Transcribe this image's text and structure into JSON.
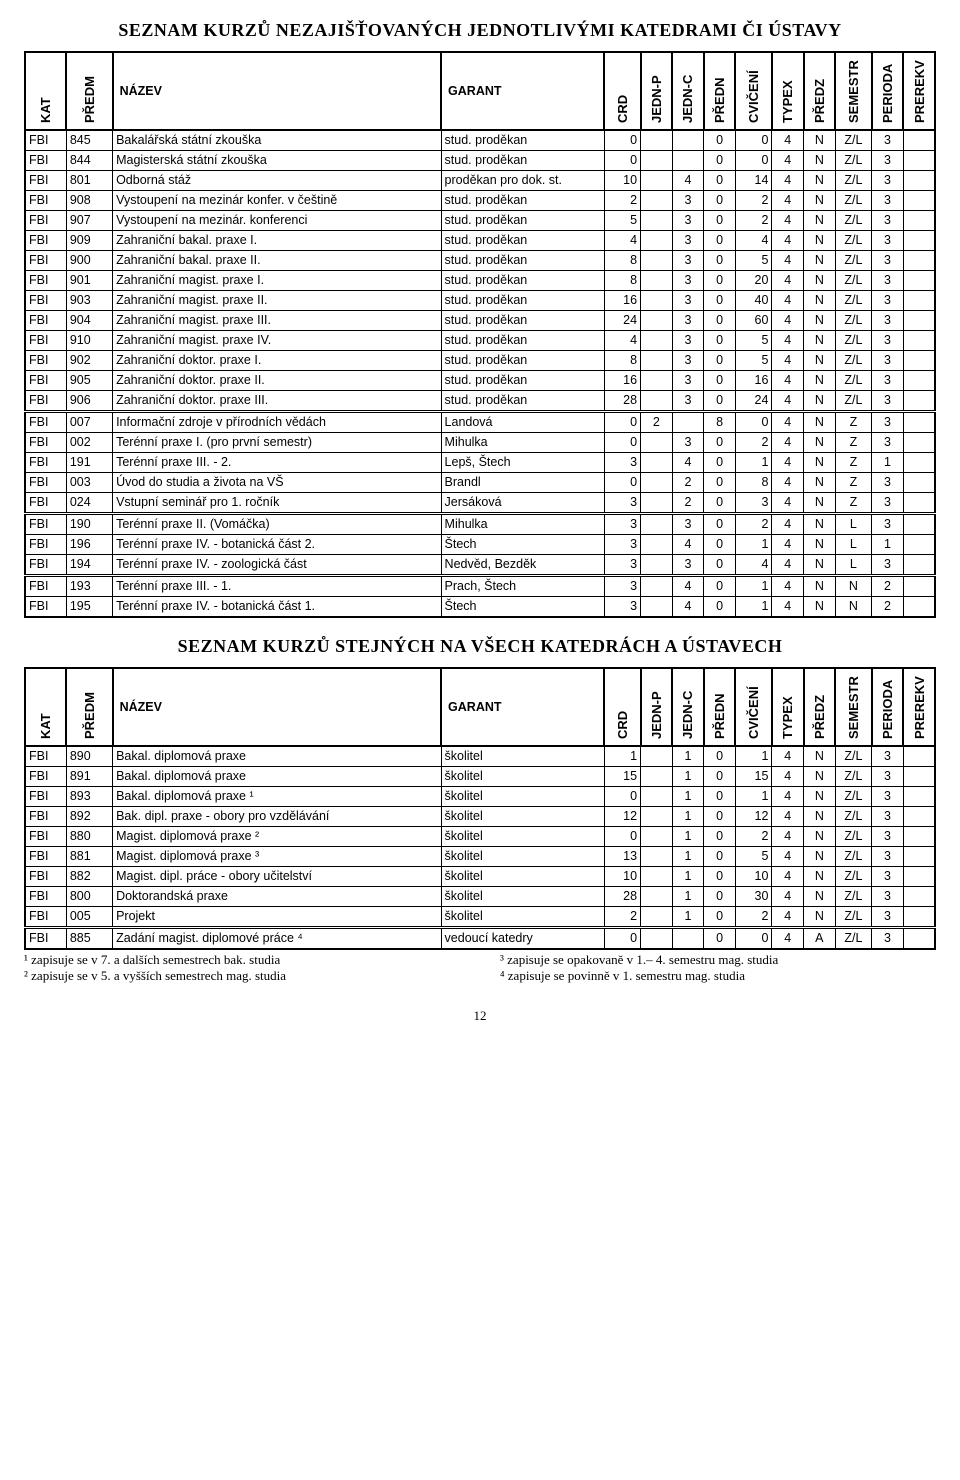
{
  "title1": "SEZNAM KURZŮ NEZAJIŠŤOVANÝCH JEDNOTLIVÝMI KATEDRAMI ČI ÚSTAVY",
  "title2": "SEZNAM KURZŮ STEJNÝCH NA VŠECH KATEDRÁCH A ÚSTAVECH",
  "headers": {
    "kat": "KAT",
    "predm": "PŘEDM",
    "nazev": "NÁZEV",
    "garant": "GARANT",
    "crd": "CRD",
    "jednp": "JEDN-P",
    "jednc": "JEDN-C",
    "predn": "PŘEDN",
    "cvic": "CVIČENÍ",
    "typex": "TYPEX",
    "predz": "PŘEDZ",
    "semestr": "SEMESTR",
    "perioda": "PERIODA",
    "prerekv": "PREREKV"
  },
  "table1": [
    {
      "kat": "FBI",
      "predm": "845",
      "nazev": "Bakalářská státní zkouška",
      "garant": "stud. proděkan",
      "crd": "0",
      "jednp": "",
      "jednc": "",
      "predn": "0",
      "cvic": "0",
      "typex": "4",
      "predz": "N",
      "sem": "Z/L",
      "per": "3",
      "pre": "",
      "sep": false
    },
    {
      "kat": "FBI",
      "predm": "844",
      "nazev": "Magisterská státní zkouška",
      "garant": "stud. proděkan",
      "crd": "0",
      "jednp": "",
      "jednc": "",
      "predn": "0",
      "cvic": "0",
      "typex": "4",
      "predz": "N",
      "sem": "Z/L",
      "per": "3",
      "pre": "",
      "sep": false
    },
    {
      "kat": "FBI",
      "predm": "801",
      "nazev": "Odborná stáž",
      "garant": "proděkan pro dok. st.",
      "crd": "10",
      "jednp": "",
      "jednc": "4",
      "predn": "0",
      "cvic": "14",
      "typex": "4",
      "predz": "N",
      "sem": "Z/L",
      "per": "3",
      "pre": "",
      "sep": false
    },
    {
      "kat": "FBI",
      "predm": "908",
      "nazev": "Vystoupení na mezinár konfer. v češtině",
      "garant": "stud. proděkan",
      "crd": "2",
      "jednp": "",
      "jednc": "3",
      "predn": "0",
      "cvic": "2",
      "typex": "4",
      "predz": "N",
      "sem": "Z/L",
      "per": "3",
      "pre": "",
      "sep": false
    },
    {
      "kat": "FBI",
      "predm": "907",
      "nazev": "Vystoupení na mezinár. konferenci",
      "garant": "stud. proděkan",
      "crd": "5",
      "jednp": "",
      "jednc": "3",
      "predn": "0",
      "cvic": "2",
      "typex": "4",
      "predz": "N",
      "sem": "Z/L",
      "per": "3",
      "pre": "",
      "sep": false
    },
    {
      "kat": "FBI",
      "predm": "909",
      "nazev": "Zahraniční bakal. praxe I.",
      "garant": "stud. proděkan",
      "crd": "4",
      "jednp": "",
      "jednc": "3",
      "predn": "0",
      "cvic": "4",
      "typex": "4",
      "predz": "N",
      "sem": "Z/L",
      "per": "3",
      "pre": "",
      "sep": false
    },
    {
      "kat": "FBI",
      "predm": "900",
      "nazev": "Zahraniční bakal. praxe II.",
      "garant": "stud. proděkan",
      "crd": "8",
      "jednp": "",
      "jednc": "3",
      "predn": "0",
      "cvic": "5",
      "typex": "4",
      "predz": "N",
      "sem": "Z/L",
      "per": "3",
      "pre": "",
      "sep": false
    },
    {
      "kat": "FBI",
      "predm": "901",
      "nazev": "Zahraniční magist. praxe I.",
      "garant": "stud. proděkan",
      "crd": "8",
      "jednp": "",
      "jednc": "3",
      "predn": "0",
      "cvic": "20",
      "typex": "4",
      "predz": "N",
      "sem": "Z/L",
      "per": "3",
      "pre": "",
      "sep": false
    },
    {
      "kat": "FBI",
      "predm": "903",
      "nazev": "Zahraniční magist. praxe II.",
      "garant": "stud. proděkan",
      "crd": "16",
      "jednp": "",
      "jednc": "3",
      "predn": "0",
      "cvic": "40",
      "typex": "4",
      "predz": "N",
      "sem": "Z/L",
      "per": "3",
      "pre": "",
      "sep": false
    },
    {
      "kat": "FBI",
      "predm": "904",
      "nazev": "Zahraniční magist. praxe III.",
      "garant": "stud. proděkan",
      "crd": "24",
      "jednp": "",
      "jednc": "3",
      "predn": "0",
      "cvic": "60",
      "typex": "4",
      "predz": "N",
      "sem": "Z/L",
      "per": "3",
      "pre": "",
      "sep": false
    },
    {
      "kat": "FBI",
      "predm": "910",
      "nazev": "Zahraniční magist. praxe IV.",
      "garant": "stud. proděkan",
      "crd": "4",
      "jednp": "",
      "jednc": "3",
      "predn": "0",
      "cvic": "5",
      "typex": "4",
      "predz": "N",
      "sem": "Z/L",
      "per": "3",
      "pre": "",
      "sep": false
    },
    {
      "kat": "FBI",
      "predm": "902",
      "nazev": "Zahraniční doktor. praxe I.",
      "garant": "stud. proděkan",
      "crd": "8",
      "jednp": "",
      "jednc": "3",
      "predn": "0",
      "cvic": "5",
      "typex": "4",
      "predz": "N",
      "sem": "Z/L",
      "per": "3",
      "pre": "",
      "sep": false
    },
    {
      "kat": "FBI",
      "predm": "905",
      "nazev": "Zahraniční doktor. praxe II.",
      "garant": "stud. proděkan",
      "crd": "16",
      "jednp": "",
      "jednc": "3",
      "predn": "0",
      "cvic": "16",
      "typex": "4",
      "predz": "N",
      "sem": "Z/L",
      "per": "3",
      "pre": "",
      "sep": false
    },
    {
      "kat": "FBI",
      "predm": "906",
      "nazev": "Zahraniční doktor. praxe III.",
      "garant": "stud. proděkan",
      "crd": "28",
      "jednp": "",
      "jednc": "3",
      "predn": "0",
      "cvic": "24",
      "typex": "4",
      "predz": "N",
      "sem": "Z/L",
      "per": "3",
      "pre": "",
      "sep": false
    },
    {
      "kat": "FBI",
      "predm": "007",
      "nazev": "Informační zdroje v přírodních vědách",
      "garant": "Landová",
      "crd": "0",
      "jednp": "2",
      "jednc": "",
      "predn": "8",
      "cvic": "0",
      "typex": "4",
      "predz": "N",
      "sem": "Z",
      "per": "3",
      "pre": "",
      "sep": true
    },
    {
      "kat": "FBI",
      "predm": "002",
      "nazev": "Terénní praxe I. (pro první semestr)",
      "garant": "Mihulka",
      "crd": "0",
      "jednp": "",
      "jednc": "3",
      "predn": "0",
      "cvic": "2",
      "typex": "4",
      "predz": "N",
      "sem": "Z",
      "per": "3",
      "pre": "",
      "sep": false
    },
    {
      "kat": "FBI",
      "predm": "191",
      "nazev": "Terénní praxe III. - 2.",
      "garant": "Lepš, Štech",
      "crd": "3",
      "jednp": "",
      "jednc": "4",
      "predn": "0",
      "cvic": "1",
      "typex": "4",
      "predz": "N",
      "sem": "Z",
      "per": "1",
      "pre": "",
      "sep": false
    },
    {
      "kat": "FBI",
      "predm": "003",
      "nazev": "Úvod do studia a života na VŠ",
      "garant": "Brandl",
      "crd": "0",
      "jednp": "",
      "jednc": "2",
      "predn": "0",
      "cvic": "8",
      "typex": "4",
      "predz": "N",
      "sem": "Z",
      "per": "3",
      "pre": "",
      "sep": false
    },
    {
      "kat": "FBI",
      "predm": "024",
      "nazev": "Vstupní seminář pro 1. ročník",
      "garant": "Jersáková",
      "crd": "3",
      "jednp": "",
      "jednc": "2",
      "predn": "0",
      "cvic": "3",
      "typex": "4",
      "predz": "N",
      "sem": "Z",
      "per": "3",
      "pre": "",
      "sep": false
    },
    {
      "kat": "FBI",
      "predm": "190",
      "nazev": "Terénní praxe II. (Vomáčka)",
      "garant": "Mihulka",
      "crd": "3",
      "jednp": "",
      "jednc": "3",
      "predn": "0",
      "cvic": "2",
      "typex": "4",
      "predz": "N",
      "sem": "L",
      "per": "3",
      "pre": "",
      "sep": true
    },
    {
      "kat": "FBI",
      "predm": "196",
      "nazev": "Terénní praxe IV. - botanická část 2.",
      "garant": "Štech",
      "crd": "3",
      "jednp": "",
      "jednc": "4",
      "predn": "0",
      "cvic": "1",
      "typex": "4",
      "predz": "N",
      "sem": "L",
      "per": "1",
      "pre": "",
      "sep": false
    },
    {
      "kat": "FBI",
      "predm": "194",
      "nazev": "Terénní praxe IV. - zoologická část",
      "garant": "Nedvěd, Bezděk",
      "crd": "3",
      "jednp": "",
      "jednc": "3",
      "predn": "0",
      "cvic": "4",
      "typex": "4",
      "predz": "N",
      "sem": "L",
      "per": "3",
      "pre": "",
      "sep": false
    },
    {
      "kat": "FBI",
      "predm": "193",
      "nazev": "Terénní praxe III. - 1.",
      "garant": "Prach, Štech",
      "crd": "3",
      "jednp": "",
      "jednc": "4",
      "predn": "0",
      "cvic": "1",
      "typex": "4",
      "predz": "N",
      "sem": "N",
      "per": "2",
      "pre": "",
      "sep": true
    },
    {
      "kat": "FBI",
      "predm": "195",
      "nazev": "Terénní praxe IV. - botanická část 1.",
      "garant": "Štech",
      "crd": "3",
      "jednp": "",
      "jednc": "4",
      "predn": "0",
      "cvic": "1",
      "typex": "4",
      "predz": "N",
      "sem": "N",
      "per": "2",
      "pre": "",
      "sep": false
    }
  ],
  "table2": [
    {
      "kat": "FBI",
      "predm": "890",
      "nazev": "Bakal. diplomová praxe",
      "garant": "školitel",
      "crd": "1",
      "jednp": "",
      "jednc": "1",
      "predn": "0",
      "cvic": "1",
      "typex": "4",
      "predz": "N",
      "sem": "Z/L",
      "per": "3",
      "pre": "",
      "sep": false
    },
    {
      "kat": "FBI",
      "predm": "891",
      "nazev": "Bakal. diplomová praxe",
      "garant": "školitel",
      "crd": "15",
      "jednp": "",
      "jednc": "1",
      "predn": "0",
      "cvic": "15",
      "typex": "4",
      "predz": "N",
      "sem": "Z/L",
      "per": "3",
      "pre": "",
      "sep": false
    },
    {
      "kat": "FBI",
      "predm": "893",
      "nazev": "Bakal. diplomová praxe ¹",
      "garant": "školitel",
      "crd": "0",
      "jednp": "",
      "jednc": "1",
      "predn": "0",
      "cvic": "1",
      "typex": "4",
      "predz": "N",
      "sem": "Z/L",
      "per": "3",
      "pre": "",
      "sep": false
    },
    {
      "kat": "FBI",
      "predm": "892",
      "nazev": "Bak. dipl. praxe - obory pro vzdělávání",
      "garant": "školitel",
      "crd": "12",
      "jednp": "",
      "jednc": "1",
      "predn": "0",
      "cvic": "12",
      "typex": "4",
      "predz": "N",
      "sem": "Z/L",
      "per": "3",
      "pre": "",
      "sep": false
    },
    {
      "kat": "FBI",
      "predm": "880",
      "nazev": "Magist. diplomová praxe ²",
      "garant": "školitel",
      "crd": "0",
      "jednp": "",
      "jednc": "1",
      "predn": "0",
      "cvic": "2",
      "typex": "4",
      "predz": "N",
      "sem": "Z/L",
      "per": "3",
      "pre": "",
      "sep": false
    },
    {
      "kat": "FBI",
      "predm": "881",
      "nazev": "Magist. diplomová praxe ³",
      "garant": "školitel",
      "crd": "13",
      "jednp": "",
      "jednc": "1",
      "predn": "0",
      "cvic": "5",
      "typex": "4",
      "predz": "N",
      "sem": "Z/L",
      "per": "3",
      "pre": "",
      "sep": false
    },
    {
      "kat": "FBI",
      "predm": "882",
      "nazev": "Magist. dipl. práce - obory učitelství",
      "garant": "školitel",
      "crd": "10",
      "jednp": "",
      "jednc": "1",
      "predn": "0",
      "cvic": "10",
      "typex": "4",
      "predz": "N",
      "sem": "Z/L",
      "per": "3",
      "pre": "",
      "sep": false
    },
    {
      "kat": "FBI",
      "predm": "800",
      "nazev": "Doktorandská praxe",
      "garant": "školitel",
      "crd": "28",
      "jednp": "",
      "jednc": "1",
      "predn": "0",
      "cvic": "30",
      "typex": "4",
      "predz": "N",
      "sem": "Z/L",
      "per": "3",
      "pre": "",
      "sep": false
    },
    {
      "kat": "FBI",
      "predm": "005",
      "nazev": "Projekt",
      "garant": "školitel",
      "crd": "2",
      "jednp": "",
      "jednc": "1",
      "predn": "0",
      "cvic": "2",
      "typex": "4",
      "predz": "N",
      "sem": "Z/L",
      "per": "3",
      "pre": "",
      "sep": false
    },
    {
      "kat": "FBI",
      "predm": "885",
      "nazev": "Zadání magist. diplomové práce ⁴",
      "garant": "vedoucí katedry",
      "crd": "0",
      "jednp": "",
      "jednc": "",
      "predn": "0",
      "cvic": "0",
      "typex": "4",
      "predz": "A",
      "sem": "Z/L",
      "per": "3",
      "pre": "",
      "sep": true
    }
  ],
  "footnotes": {
    "f1": "¹ zapisuje se v 7. a dalších semestrech bak. studia",
    "f2": "² zapisuje se v 5. a vyšších semestrech mag. studia",
    "f3": "³ zapisuje se opakovaně v 1.– 4. semestru mag. studia",
    "f4": "⁴ zapisuje se povinně v 1. semestru mag. studia"
  },
  "pagenum": "12"
}
